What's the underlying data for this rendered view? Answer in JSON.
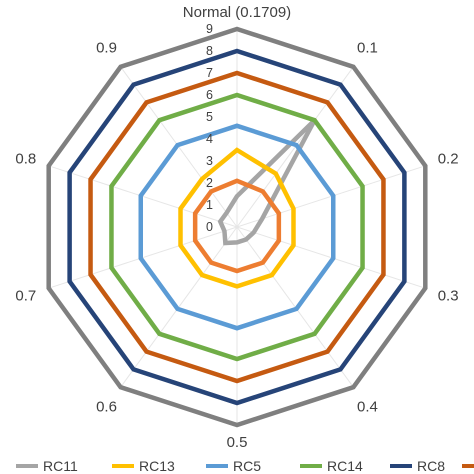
{
  "chart_data": {
    "type": "radar",
    "title": "",
    "categories": [
      "Normal (0.1709)",
      "0.1",
      "0.2",
      "0.3",
      "0.4",
      "0.5",
      "0.6",
      "0.7",
      "0.8",
      "0.9"
    ],
    "radial_ticks": [
      "0",
      "1",
      "2",
      "3",
      "4",
      "5",
      "6",
      "7",
      "8",
      "9"
    ],
    "rlim": [
      0,
      9
    ],
    "grid": true,
    "legend_position": "bottom",
    "series": [
      {
        "name": "RC11",
        "color": "#a5a5a5",
        "values": [
          1.4,
          6.0,
          1.2,
          0.8,
          0.7,
          0.7,
          0.9,
          0.6,
          0.8,
          0.8
        ]
      },
      {
        "name": "RC13",
        "color": "#ffc000",
        "values": [
          3.5,
          3.0,
          2.7,
          2.7,
          2.7,
          2.7,
          2.7,
          2.7,
          2.7,
          2.7
        ]
      },
      {
        "name": "RC5",
        "color": "#5b9bd5",
        "values": [
          4.6,
          4.6,
          4.6,
          4.6,
          4.6,
          4.6,
          4.6,
          4.6,
          4.6,
          4.6
        ]
      },
      {
        "name": "RC14",
        "color": "#70ad47",
        "values": [
          6.0,
          6.0,
          6.0,
          6.0,
          6.0,
          6.0,
          6.0,
          6.0,
          6.0,
          6.0
        ]
      },
      {
        "name": "RC8",
        "color": "#264478",
        "values": [
          8.0,
          8.0,
          8.0,
          8.0,
          8.0,
          8.0,
          8.0,
          8.0,
          8.0,
          8.0
        ]
      },
      {
        "name": "",
        "color": "#c55a11",
        "values": [
          7.0,
          7.0,
          7.0,
          7.0,
          7.0,
          7.0,
          7.0,
          7.0,
          7.0,
          7.0
        ]
      },
      {
        "name": "",
        "color": "#ed7d31",
        "values": [
          2.1,
          2.0,
          2.0,
          2.0,
          2.0,
          2.0,
          2.0,
          2.0,
          2.0,
          2.0
        ]
      },
      {
        "name": "",
        "color": "#7f7f7f",
        "values": [
          9.0,
          9.0,
          9.0,
          9.0,
          9.0,
          9.0,
          9.0,
          9.0,
          9.0,
          9.0
        ]
      }
    ]
  }
}
